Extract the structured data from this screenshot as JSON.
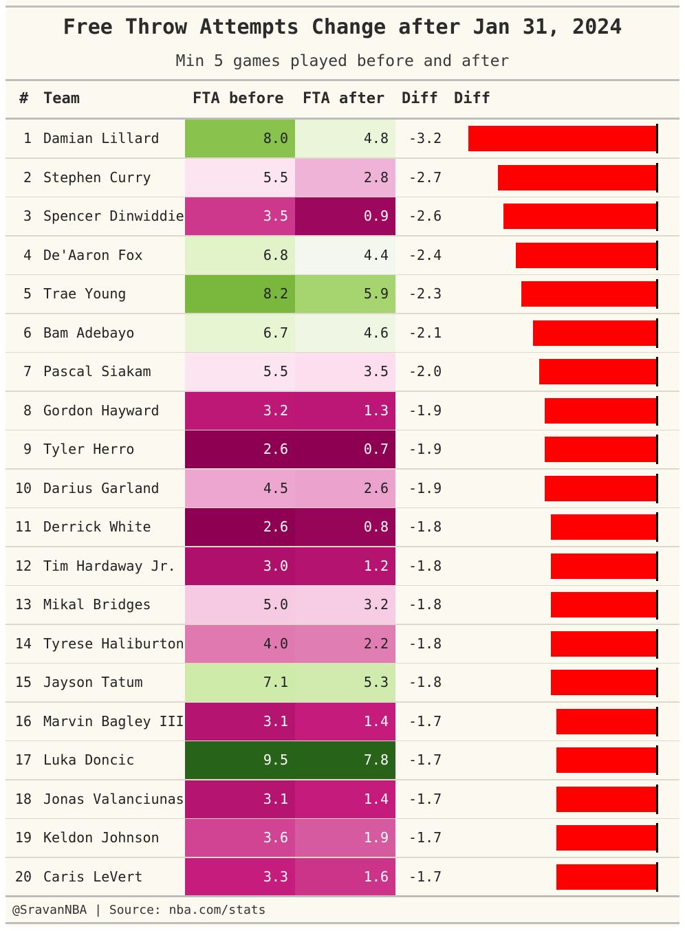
{
  "title": "Free Throw Attempts Change after Jan 31, 2024",
  "subtitle": "Min 5 games played before and after",
  "columns": {
    "rank": "#",
    "team": "Team",
    "fta_before": "FTA before",
    "fta_after": "FTA after",
    "diff": "Diff",
    "diff_bar": "Diff"
  },
  "footer": "@SravanNBA | Source: nba.com/stats",
  "colors": {
    "bar": "#ff0000",
    "scale_low": "#8e0152",
    "scale_mid": "#f7f7f7",
    "scale_high": "#276419"
  },
  "chart_data": {
    "type": "table",
    "color_scale": "PiYG",
    "bar_range": [
      -3.2,
      0
    ],
    "rows": [
      {
        "rank": "1",
        "team": "Damian Lillard",
        "before": "8.0",
        "after": "4.8",
        "diff": "-3.2"
      },
      {
        "rank": "2",
        "team": "Stephen Curry",
        "before": "5.5",
        "after": "2.8",
        "diff": "-2.7"
      },
      {
        "rank": "3",
        "team": "Spencer Dinwiddie",
        "before": "3.5",
        "after": "0.9",
        "diff": "-2.6"
      },
      {
        "rank": "4",
        "team": "De'Aaron Fox",
        "before": "6.8",
        "after": "4.4",
        "diff": "-2.4"
      },
      {
        "rank": "5",
        "team": "Trae Young",
        "before": "8.2",
        "after": "5.9",
        "diff": "-2.3"
      },
      {
        "rank": "6",
        "team": "Bam Adebayo",
        "before": "6.7",
        "after": "4.6",
        "diff": "-2.1"
      },
      {
        "rank": "7",
        "team": "Pascal Siakam",
        "before": "5.5",
        "after": "3.5",
        "diff": "-2.0"
      },
      {
        "rank": "8",
        "team": "Gordon Hayward",
        "before": "3.2",
        "after": "1.3",
        "diff": "-1.9"
      },
      {
        "rank": "9",
        "team": "Tyler Herro",
        "before": "2.6",
        "after": "0.7",
        "diff": "-1.9"
      },
      {
        "rank": "10",
        "team": "Darius Garland",
        "before": "4.5",
        "after": "2.6",
        "diff": "-1.9"
      },
      {
        "rank": "11",
        "team": "Derrick White",
        "before": "2.6",
        "after": "0.8",
        "diff": "-1.8"
      },
      {
        "rank": "12",
        "team": "Tim Hardaway Jr.",
        "before": "3.0",
        "after": "1.2",
        "diff": "-1.8"
      },
      {
        "rank": "13",
        "team": "Mikal Bridges",
        "before": "5.0",
        "after": "3.2",
        "diff": "-1.8"
      },
      {
        "rank": "14",
        "team": "Tyrese Haliburton",
        "before": "4.0",
        "after": "2.2",
        "diff": "-1.8"
      },
      {
        "rank": "15",
        "team": "Jayson Tatum",
        "before": "7.1",
        "after": "5.3",
        "diff": "-1.8"
      },
      {
        "rank": "16",
        "team": "Marvin Bagley III",
        "before": "3.1",
        "after": "1.4",
        "diff": "-1.7"
      },
      {
        "rank": "17",
        "team": "Luka Doncic",
        "before": "9.5",
        "after": "7.8",
        "diff": "-1.7"
      },
      {
        "rank": "18",
        "team": "Jonas Valanciunas",
        "before": "3.1",
        "after": "1.4",
        "diff": "-1.7"
      },
      {
        "rank": "19",
        "team": "Keldon Johnson",
        "before": "3.6",
        "after": "1.9",
        "diff": "-1.7"
      },
      {
        "rank": "20",
        "team": "Caris LeVert",
        "before": "3.3",
        "after": "1.6",
        "diff": "-1.7"
      }
    ]
  }
}
